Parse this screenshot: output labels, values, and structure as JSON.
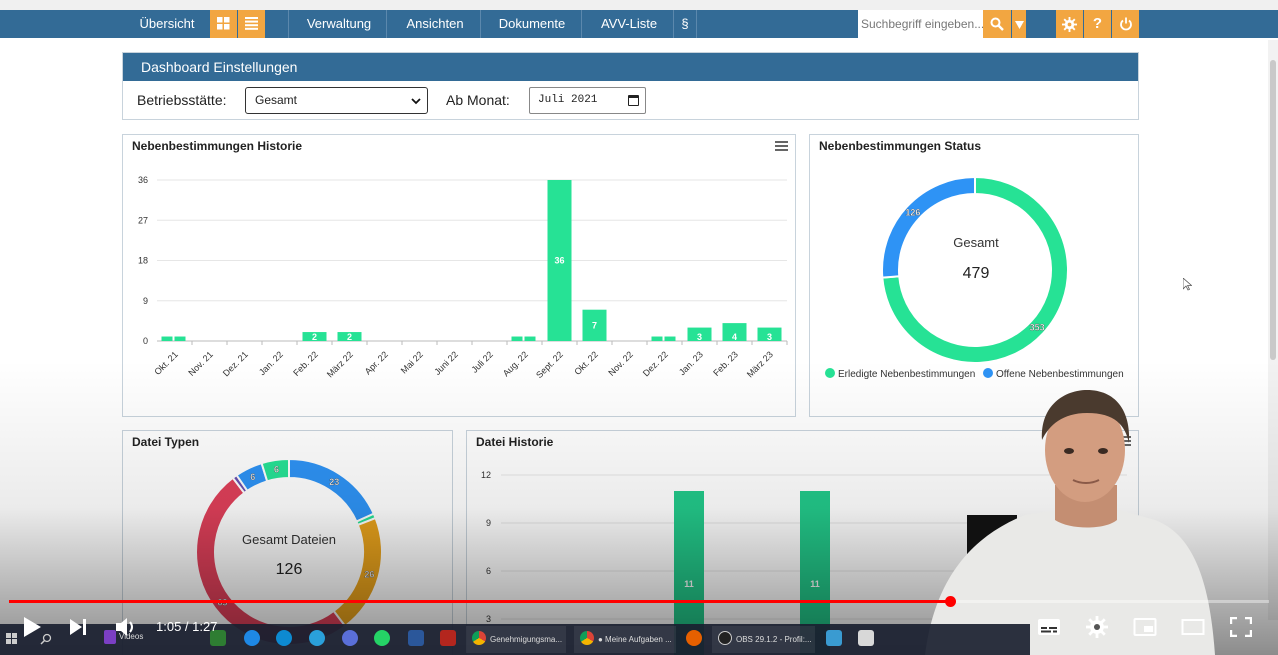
{
  "nav": {
    "overview": "Übersicht",
    "management": "Verwaltung",
    "views": "Ansichten",
    "documents": "Dokumente",
    "avv_list": "AVV-Liste",
    "paragraph": "§",
    "search_placeholder": "Suchbegriff eingeben..."
  },
  "settings": {
    "title": "Dashboard Einstellungen",
    "site_label": "Betriebsstätte:",
    "site_value": "Gesamt",
    "month_label": "Ab Monat:",
    "month_value": "Juli 2021"
  },
  "history_card": {
    "title": "Nebenbestimmungen Historie"
  },
  "status_card": {
    "title": "Nebenbestimmungen Status",
    "center_label": "Gesamt",
    "center_value": "479"
  },
  "types_card": {
    "title": "Datei Typen",
    "center_label": "Gesamt Dateien",
    "center_value": "126"
  },
  "file_history_card": {
    "title": "Datei Historie"
  },
  "player": {
    "time": "1:05 / 1:27",
    "progress": 0.747
  },
  "taskbar": {
    "videos": "Videos",
    "app1": "Genehmigungsma...",
    "app2": "● Meine Aufgaben ...",
    "app3": "OBS 29.1.2 - Profil:..."
  },
  "colors": {
    "nav_bg": "#336b96",
    "accent_orange": "#f2a641",
    "green": "#26e295",
    "blue": "#2e93f5",
    "orange": "#e8a21c",
    "red": "#e0405a",
    "progress_red": "#ff0000"
  },
  "chart_data": [
    {
      "type": "bar",
      "title": "Nebenbestimmungen Historie",
      "categories": [
        "Okt. 21",
        "Nov. 21",
        "Dez. 21",
        "Jan. 22",
        "Feb. 22",
        "März 22",
        "Apr. 22",
        "Mai 22",
        "Juni 22",
        "Juli 22",
        "Aug. 22",
        "Sept. 22",
        "Okt. 22",
        "Nov. 22",
        "Dez. 22",
        "Jan. 23",
        "Feb. 23",
        "März 23"
      ],
      "values": [
        1,
        0,
        0,
        0,
        2,
        2,
        0,
        0,
        0,
        0,
        1,
        36,
        7,
        0,
        1,
        3,
        4,
        3
      ],
      "labels": [
        "",
        "",
        "",
        "",
        "2",
        "2",
        "",
        "",
        "",
        "",
        "",
        "36",
        "7",
        "",
        "",
        "3",
        "4",
        "3"
      ],
      "yticks": [
        0,
        9,
        18,
        27,
        36
      ],
      "ylim": [
        0,
        36
      ],
      "color": "#26e295"
    },
    {
      "type": "pie",
      "title": "Nebenbestimmungen Status",
      "slices": [
        {
          "name": "Erledigte Nebenbestimmungen",
          "value": 353,
          "color": "#26e295"
        },
        {
          "name": "Offene Nebenbestimmungen",
          "value": 126,
          "color": "#2e93f5"
        }
      ],
      "legend": "bottom"
    },
    {
      "type": "pie",
      "title": "Datei Typen",
      "slices": [
        {
          "value": 23,
          "color": "#2e93f5",
          "label": "23"
        },
        {
          "value": 1,
          "color": "#26e295",
          "label": ""
        },
        {
          "value": 26,
          "color": "#e8a21c",
          "label": "26"
        },
        {
          "value": 63,
          "color": "#e0405a",
          "label": "63"
        },
        {
          "value": 1,
          "color": "#6a4fb0",
          "label": ""
        },
        {
          "value": 6,
          "color": "#2e93f5",
          "label": "6"
        },
        {
          "value": 6,
          "color": "#26e295",
          "label": "6"
        }
      ]
    },
    {
      "type": "bar",
      "title": "Datei Historie",
      "values": [
        11,
        11
      ],
      "labels": [
        "11",
        "11"
      ],
      "yticks": [
        3,
        6,
        9,
        12
      ],
      "ylim": [
        0,
        12
      ],
      "color": "#23c98a"
    }
  ]
}
